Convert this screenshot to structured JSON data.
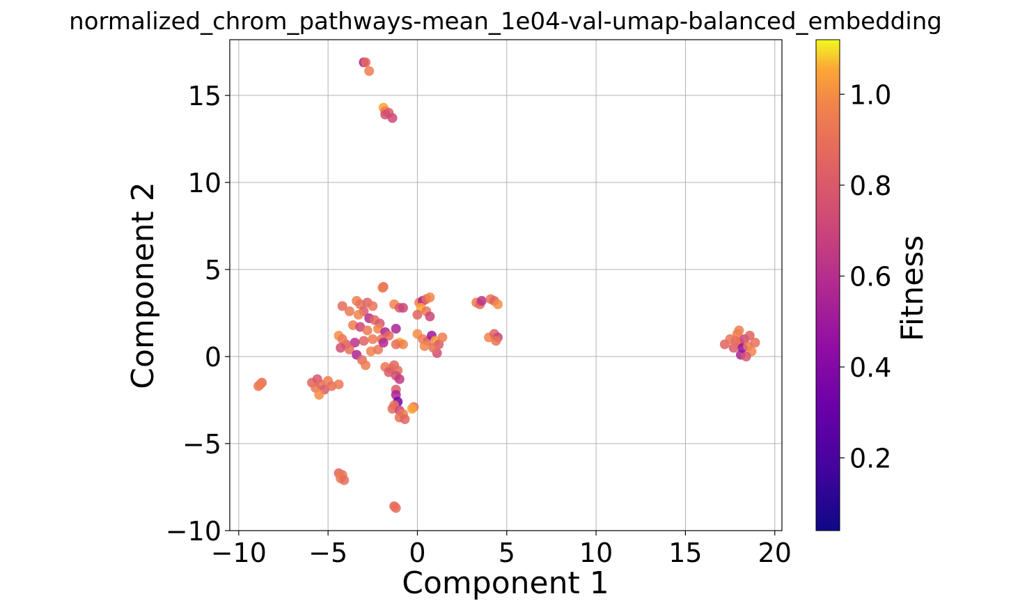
{
  "chart_data": {
    "type": "scatter",
    "title": "normalized_chrom_pathways-mean_1e04-val-umap-balanced_embedding",
    "xlabel": "Component 1",
    "ylabel": "Component 2",
    "xlim": [
      -10.5,
      20.4
    ],
    "ylim": [
      -10,
      18.2
    ],
    "xticks": [
      -10,
      -5,
      0,
      5,
      10,
      15,
      20
    ],
    "yticks": [
      -10,
      -5,
      0,
      5,
      10,
      15
    ],
    "xtick_labels": [
      "−10",
      "−5",
      "0",
      "5",
      "10",
      "15",
      "20"
    ],
    "ytick_labels": [
      "−10",
      "−5",
      "0",
      "5",
      "10",
      "15"
    ],
    "grid": true,
    "colormap": "plasma",
    "colorbar": {
      "label": "Fitness",
      "range": [
        0.04,
        1.12
      ],
      "ticks": [
        0.2,
        0.4,
        0.6,
        0.8,
        1.0
      ],
      "tick_labels": [
        "0.2",
        "0.4",
        "0.6",
        "0.8",
        "1.0"
      ]
    },
    "points": [
      {
        "x": -3.0,
        "y": 16.9,
        "c": 0.5
      },
      {
        "x": -2.9,
        "y": 16.9,
        "c": 0.88
      },
      {
        "x": -2.7,
        "y": 16.4,
        "c": 0.95
      },
      {
        "x": -1.9,
        "y": 14.3,
        "c": 1.05
      },
      {
        "x": -1.8,
        "y": 14.1,
        "c": 0.95
      },
      {
        "x": -1.6,
        "y": 14.0,
        "c": 0.8
      },
      {
        "x": -1.8,
        "y": 13.9,
        "c": 0.75
      },
      {
        "x": -1.4,
        "y": 13.7,
        "c": 0.72
      },
      {
        "x": -1.9,
        "y": 4.0,
        "c": 0.85
      },
      {
        "x": -1.95,
        "y": 3.95,
        "c": 0.95
      },
      {
        "x": -3.4,
        "y": 3.2,
        "c": 0.95
      },
      {
        "x": -3.2,
        "y": 3.0,
        "c": 0.9
      },
      {
        "x": -2.8,
        "y": 3.1,
        "c": 0.85
      },
      {
        "x": -2.5,
        "y": 2.9,
        "c": 0.92
      },
      {
        "x": -3.0,
        "y": 2.6,
        "c": 0.8
      },
      {
        "x": -4.2,
        "y": 2.9,
        "c": 0.88
      },
      {
        "x": -3.8,
        "y": 2.6,
        "c": 0.93
      },
      {
        "x": -3.3,
        "y": 2.4,
        "c": 0.98
      },
      {
        "x": -2.7,
        "y": 2.2,
        "c": 0.6
      },
      {
        "x": -2.4,
        "y": 2.1,
        "c": 0.86
      },
      {
        "x": -2.1,
        "y": 1.9,
        "c": 0.78
      },
      {
        "x": -3.6,
        "y": 1.8,
        "c": 0.95
      },
      {
        "x": -3.2,
        "y": 1.7,
        "c": 0.7
      },
      {
        "x": -2.8,
        "y": 1.5,
        "c": 0.93
      },
      {
        "x": -2.2,
        "y": 1.6,
        "c": 0.98
      },
      {
        "x": -1.8,
        "y": 1.4,
        "c": 0.55
      },
      {
        "x": -1.6,
        "y": 1.2,
        "c": 0.88
      },
      {
        "x": -2.0,
        "y": 1.0,
        "c": 0.9
      },
      {
        "x": -2.5,
        "y": 1.0,
        "c": 0.94
      },
      {
        "x": -3.0,
        "y": 0.9,
        "c": 0.85
      },
      {
        "x": -3.5,
        "y": 0.8,
        "c": 0.62
      },
      {
        "x": -4.0,
        "y": 0.7,
        "c": 0.8
      },
      {
        "x": -4.4,
        "y": 1.2,
        "c": 1.0
      },
      {
        "x": -4.2,
        "y": 1.0,
        "c": 0.93
      },
      {
        "x": -4.3,
        "y": 0.5,
        "c": 0.75
      },
      {
        "x": -3.8,
        "y": 0.4,
        "c": 0.9
      },
      {
        "x": -3.4,
        "y": 0.1,
        "c": 0.55
      },
      {
        "x": -3.1,
        "y": -0.2,
        "c": 0.88
      },
      {
        "x": -2.9,
        "y": -0.5,
        "c": 0.95
      },
      {
        "x": -2.6,
        "y": 0.3,
        "c": 0.97
      },
      {
        "x": -2.2,
        "y": 0.4,
        "c": 0.92
      },
      {
        "x": -1.9,
        "y": 0.8,
        "c": 0.58
      },
      {
        "x": -1.2,
        "y": 1.6,
        "c": 0.55
      },
      {
        "x": -1.3,
        "y": 3.0,
        "c": 0.98
      },
      {
        "x": -1.0,
        "y": 2.8,
        "c": 0.8
      },
      {
        "x": -0.8,
        "y": 2.8,
        "c": 0.7
      },
      {
        "x": -1.0,
        "y": 0.8,
        "c": 1.05
      },
      {
        "x": -0.8,
        "y": 0.7,
        "c": 0.98
      },
      {
        "x": -1.2,
        "y": 0.7,
        "c": 0.9
      },
      {
        "x": -1.8,
        "y": -0.6,
        "c": 0.92
      },
      {
        "x": -1.5,
        "y": -0.7,
        "c": 0.96
      },
      {
        "x": -1.3,
        "y": -0.5,
        "c": 0.85
      },
      {
        "x": -1.1,
        "y": -0.8,
        "c": 0.9
      },
      {
        "x": -1.6,
        "y": -0.9,
        "c": 0.8
      },
      {
        "x": -1.2,
        "y": -1.1,
        "c": 0.75
      },
      {
        "x": -1.0,
        "y": -1.3,
        "c": 0.65
      },
      {
        "x": -1.2,
        "y": -1.9,
        "c": 0.8
      },
      {
        "x": -1.2,
        "y": -2.2,
        "c": 0.55
      },
      {
        "x": -1.1,
        "y": -2.6,
        "c": 0.35
      },
      {
        "x": -1.3,
        "y": -2.8,
        "c": 0.93
      },
      {
        "x": -1.4,
        "y": -3.0,
        "c": 0.88
      },
      {
        "x": -1.0,
        "y": -3.1,
        "c": 0.7
      },
      {
        "x": -0.8,
        "y": -3.3,
        "c": 0.95
      },
      {
        "x": -1.0,
        "y": -3.5,
        "c": 0.9
      },
      {
        "x": -0.7,
        "y": -3.6,
        "c": 0.85
      },
      {
        "x": -0.2,
        "y": -2.9,
        "c": 0.88
      },
      {
        "x": -0.3,
        "y": -3.0,
        "c": 1.05
      },
      {
        "x": 0.1,
        "y": 3.1,
        "c": 0.95
      },
      {
        "x": 0.3,
        "y": 3.2,
        "c": 0.55
      },
      {
        "x": 0.5,
        "y": 3.3,
        "c": 0.88
      },
      {
        "x": 0.7,
        "y": 3.4,
        "c": 0.98
      },
      {
        "x": 0.2,
        "y": 2.8,
        "c": 1.05
      },
      {
        "x": 0.5,
        "y": 2.6,
        "c": 0.92
      },
      {
        "x": 0.0,
        "y": 2.4,
        "c": 0.85
      },
      {
        "x": 0.7,
        "y": 2.3,
        "c": 0.7
      },
      {
        "x": 0.0,
        "y": 1.3,
        "c": 1.0
      },
      {
        "x": 0.3,
        "y": 1.0,
        "c": 0.93
      },
      {
        "x": 0.6,
        "y": 0.9,
        "c": 0.85
      },
      {
        "x": 0.8,
        "y": 1.2,
        "c": 0.5
      },
      {
        "x": 1.0,
        "y": 0.9,
        "c": 1.05
      },
      {
        "x": 1.2,
        "y": 0.7,
        "c": 0.8
      },
      {
        "x": 1.4,
        "y": 1.1,
        "c": 0.95
      },
      {
        "x": 0.4,
        "y": 0.6,
        "c": 0.98
      },
      {
        "x": 1.1,
        "y": 0.2,
        "c": 0.75
      },
      {
        "x": 0.9,
        "y": 0.5,
        "c": 0.9
      },
      {
        "x": 3.3,
        "y": 3.1,
        "c": 0.95
      },
      {
        "x": 3.5,
        "y": 3.0,
        "c": 0.88
      },
      {
        "x": 3.6,
        "y": 3.2,
        "c": 0.62
      },
      {
        "x": 4.1,
        "y": 3.3,
        "c": 0.92
      },
      {
        "x": 4.3,
        "y": 3.2,
        "c": 0.85
      },
      {
        "x": 4.5,
        "y": 3.0,
        "c": 1.0
      },
      {
        "x": 4.0,
        "y": 1.1,
        "c": 0.98
      },
      {
        "x": 4.3,
        "y": 1.3,
        "c": 0.85
      },
      {
        "x": 4.5,
        "y": 1.1,
        "c": 0.7
      },
      {
        "x": 4.4,
        "y": 0.9,
        "c": 0.92
      },
      {
        "x": -8.9,
        "y": -1.7,
        "c": 0.92
      },
      {
        "x": -8.7,
        "y": -1.5,
        "c": 0.88
      },
      {
        "x": -8.8,
        "y": -1.6,
        "c": 0.95
      },
      {
        "x": -5.9,
        "y": -1.5,
        "c": 0.85
      },
      {
        "x": -5.6,
        "y": -1.3,
        "c": 0.78
      },
      {
        "x": -5.7,
        "y": -1.8,
        "c": 0.92
      },
      {
        "x": -5.4,
        "y": -1.6,
        "c": 0.88
      },
      {
        "x": -5.2,
        "y": -1.9,
        "c": 0.8
      },
      {
        "x": -5.0,
        "y": -1.4,
        "c": 0.95
      },
      {
        "x": -4.8,
        "y": -1.7,
        "c": 0.9
      },
      {
        "x": -5.5,
        "y": -2.2,
        "c": 1.0
      },
      {
        "x": -4.4,
        "y": -1.6,
        "c": 0.93
      },
      {
        "x": -4.4,
        "y": -6.7,
        "c": 0.85
      },
      {
        "x": -4.2,
        "y": -6.8,
        "c": 0.92
      },
      {
        "x": -4.3,
        "y": -7.0,
        "c": 0.95
      },
      {
        "x": -4.1,
        "y": -7.1,
        "c": 0.88
      },
      {
        "x": -1.3,
        "y": -8.6,
        "c": 0.85
      },
      {
        "x": -1.2,
        "y": -8.7,
        "c": 0.9
      },
      {
        "x": 17.2,
        "y": 0.7,
        "c": 0.85
      },
      {
        "x": 17.5,
        "y": 1.0,
        "c": 0.92
      },
      {
        "x": 17.7,
        "y": 0.5,
        "c": 0.8
      },
      {
        "x": 17.9,
        "y": 1.3,
        "c": 0.95
      },
      {
        "x": 18.0,
        "y": 0.8,
        "c": 0.88
      },
      {
        "x": 18.1,
        "y": 0.1,
        "c": 0.55
      },
      {
        "x": 18.2,
        "y": 0.5,
        "c": 0.45
      },
      {
        "x": 18.3,
        "y": 1.0,
        "c": 0.7
      },
      {
        "x": 18.5,
        "y": 0.6,
        "c": 0.93
      },
      {
        "x": 18.6,
        "y": 1.2,
        "c": 0.85
      },
      {
        "x": 18.7,
        "y": 0.3,
        "c": 0.98
      },
      {
        "x": 18.9,
        "y": 0.8,
        "c": 0.9
      },
      {
        "x": 18.0,
        "y": 1.5,
        "c": 0.96
      },
      {
        "x": 17.8,
        "y": 0.9,
        "c": 0.9
      },
      {
        "x": 18.4,
        "y": 0.0,
        "c": 0.78
      }
    ]
  }
}
